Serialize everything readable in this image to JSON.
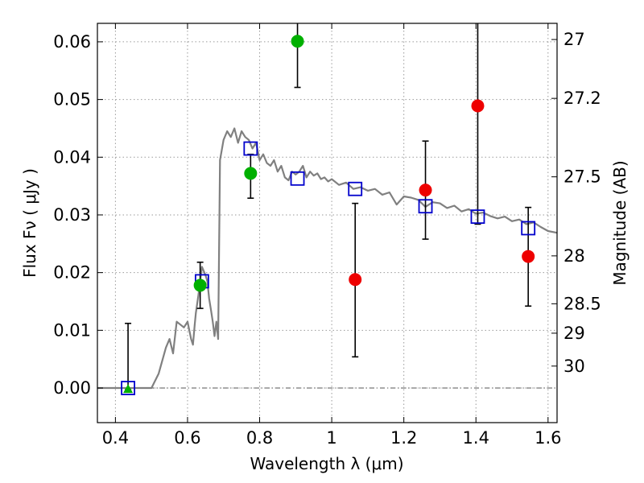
{
  "chart_data": {
    "type": "scatter",
    "xlabel": "Wavelength  λ (μm)",
    "ylabel": "Flux  Fν  ( μJy )",
    "y2label": "Magnitude (AB)",
    "xlim": [
      0.35,
      1.625
    ],
    "ylim": [
      -0.006,
      0.0632
    ],
    "grid": true,
    "x_ticks": [
      0.4,
      0.6,
      0.8,
      1.0,
      1.2,
      1.4,
      1.6
    ],
    "x_tick_labels": [
      "0.4",
      "0.6",
      "0.8",
      "1",
      "1.2",
      "1.4",
      "1.6"
    ],
    "y_ticks": [
      0.0,
      0.01,
      0.02,
      0.03,
      0.04,
      0.05,
      0.06
    ],
    "y_tick_labels": [
      "0.00",
      "0.01",
      "0.02",
      "0.03",
      "0.04",
      "0.05",
      "0.06"
    ],
    "y2_ticks": [
      {
        "flux": 0.0604,
        "label": "27"
      },
      {
        "flux": 0.0502,
        "label": "27.2"
      },
      {
        "flux": 0.0366,
        "label": "27.5"
      },
      {
        "flux": 0.0229,
        "label": "28"
      },
      {
        "flux": 0.0146,
        "label": "28.5"
      },
      {
        "flux": 0.0095,
        "label": "29"
      },
      {
        "flux": 0.0038,
        "label": "30"
      }
    ],
    "colors": {
      "model": "#808080",
      "model_squares": "#0000cc",
      "green": "#00b000",
      "red": "#ee0000",
      "error_bar": "#000000",
      "grid": "#9a9a9a"
    },
    "series": [
      {
        "kind": "line",
        "x": [
          0.35,
          0.5,
          0.52,
          0.54,
          0.55,
          0.56,
          0.57,
          0.58,
          0.59,
          0.6,
          0.61,
          0.615,
          0.62,
          0.623,
          0.63,
          0.64,
          0.65,
          0.655,
          0.66,
          0.665,
          0.67,
          0.675,
          0.68,
          0.685,
          0.69,
          0.7,
          0.71,
          0.72,
          0.73,
          0.74,
          0.75,
          0.76,
          0.77,
          0.78,
          0.79,
          0.8,
          0.81,
          0.82,
          0.83,
          0.84,
          0.85,
          0.86,
          0.87,
          0.88,
          0.89,
          0.9,
          0.91,
          0.92,
          0.93,
          0.94,
          0.95,
          0.96,
          0.97,
          0.98,
          0.99,
          1.0,
          1.02,
          1.04,
          1.06,
          1.08,
          1.1,
          1.12,
          1.14,
          1.16,
          1.18,
          1.2,
          1.22,
          1.24,
          1.26,
          1.28,
          1.3,
          1.32,
          1.34,
          1.36,
          1.38,
          1.4,
          1.42,
          1.44,
          1.46,
          1.48,
          1.5,
          1.52,
          1.54,
          1.56,
          1.58,
          1.6,
          1.625
        ],
        "y": [
          0.0,
          0.0,
          0.0025,
          0.007,
          0.0085,
          0.006,
          0.0115,
          0.011,
          0.0105,
          0.0115,
          0.0085,
          0.0075,
          0.011,
          0.013,
          0.016,
          0.021,
          0.0195,
          0.0185,
          0.0155,
          0.0135,
          0.0115,
          0.009,
          0.0115,
          0.0085,
          0.0395,
          0.043,
          0.0445,
          0.0435,
          0.045,
          0.0425,
          0.0445,
          0.0435,
          0.043,
          0.0415,
          0.0425,
          0.0395,
          0.0405,
          0.039,
          0.0385,
          0.0395,
          0.0375,
          0.0385,
          0.0365,
          0.036,
          0.0375,
          0.037,
          0.0375,
          0.0385,
          0.0365,
          0.0375,
          0.0368,
          0.0372,
          0.0362,
          0.0365,
          0.0358,
          0.0362,
          0.0352,
          0.0356,
          0.0345,
          0.0348,
          0.0342,
          0.0345,
          0.0335,
          0.0339,
          0.0318,
          0.0332,
          0.033,
          0.0326,
          0.0314,
          0.0322,
          0.032,
          0.0312,
          0.0316,
          0.0306,
          0.031,
          0.0302,
          0.0304,
          0.0298,
          0.0294,
          0.0297,
          0.0289,
          0.0292,
          0.0284,
          0.0287,
          0.0279,
          0.0272,
          0.0269
        ]
      },
      {
        "kind": "squares",
        "x": [
          0.435,
          0.64,
          0.775,
          0.905,
          1.065,
          1.26,
          1.405,
          1.545
        ],
        "y": [
          0.0,
          0.0185,
          0.0415,
          0.0363,
          0.0345,
          0.0315,
          0.0297,
          0.0277
        ]
      },
      {
        "kind": "points",
        "color": "green",
        "x": [
          0.635,
          0.775,
          0.905
        ],
        "y": [
          0.0178,
          0.0372,
          0.0601
        ],
        "err_low": [
          0.0138,
          0.0329,
          0.0521
        ],
        "err_high": [
          0.0218,
          0.0405,
          0.0632
        ]
      },
      {
        "kind": "points",
        "color": "red",
        "x": [
          1.065,
          1.26,
          1.405,
          1.545
        ],
        "y": [
          0.0188,
          0.0343,
          0.0489,
          0.0228
        ],
        "err_low": [
          0.0054,
          0.0258,
          0.0284,
          0.0142
        ],
        "err_high": [
          0.032,
          0.0428,
          0.0632,
          0.0313
        ]
      },
      {
        "kind": "triangle",
        "color": "green",
        "x": [
          0.435
        ],
        "y": [
          -0.0003
        ],
        "err_low": [
          -0.0003
        ],
        "err_high": [
          0.0112
        ]
      }
    ]
  }
}
